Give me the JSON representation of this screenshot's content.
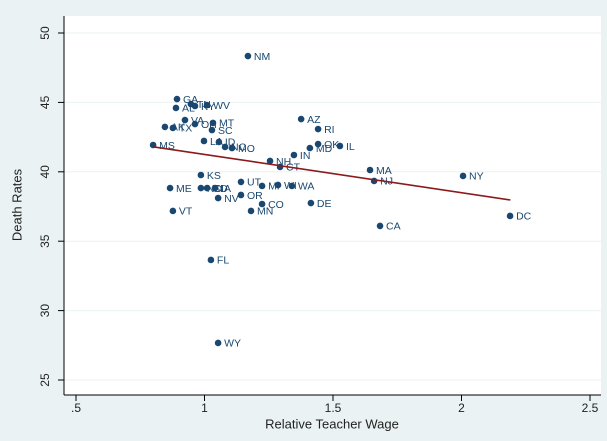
{
  "chart_data": {
    "type": "scatter",
    "x_label": "Relative Teacher Wage",
    "y_label": "Death Rates",
    "xlim": [
      0.5,
      2.5
    ],
    "ylim": [
      25,
      50
    ],
    "xticks": [
      {
        "value": 0.5,
        "label": ".5"
      },
      1,
      1.5,
      2,
      2.5
    ],
    "yticks": [
      25,
      30,
      35,
      40,
      45,
      50
    ],
    "grid": true,
    "color": "#1a476f",
    "fit_color": "#8b1a1a",
    "points": [
      {
        "label": "NM",
        "x": 1.169,
        "y": 48.34
      },
      {
        "label": "GA",
        "x": 0.893,
        "y": 45.24
      },
      {
        "label": "TN",
        "x": 0.947,
        "y": 44.88
      },
      {
        "label": "KY",
        "x": 0.963,
        "y": 44.74
      },
      {
        "label": "WV",
        "x": 1.01,
        "y": 44.81
      },
      {
        "label": "AL",
        "x": 0.889,
        "y": 44.6
      },
      {
        "label": "VA",
        "x": 0.924,
        "y": 43.73
      },
      {
        "label": "AK",
        "x": 0.846,
        "y": 43.23
      },
      {
        "label": "TX",
        "x": 0.877,
        "y": 43.16
      },
      {
        "label": "OH",
        "x": 0.963,
        "y": 43.44
      },
      {
        "label": "MT",
        "x": 1.033,
        "y": 43.52
      },
      {
        "label": "SC",
        "x": 1.029,
        "y": 43.01
      },
      {
        "label": "AZ",
        "x": 1.376,
        "y": 43.8
      },
      {
        "label": "RI",
        "x": 1.442,
        "y": 43.08
      },
      {
        "label": "LA",
        "x": 0.998,
        "y": 42.22
      },
      {
        "label": "ID",
        "x": 1.056,
        "y": 42.15
      },
      {
        "label": "NC",
        "x": 1.08,
        "y": 41.79
      },
      {
        "label": "MO",
        "x": 1.107,
        "y": 41.71
      },
      {
        "label": "MS",
        "x": 0.8,
        "y": 41.93
      },
      {
        "label": "OK",
        "x": 1.442,
        "y": 42.0
      },
      {
        "label": "IL",
        "x": 1.527,
        "y": 41.86
      },
      {
        "label": "MD",
        "x": 1.41,
        "y": 41.71
      },
      {
        "label": "IN",
        "x": 1.348,
        "y": 41.21
      },
      {
        "label": "NH",
        "x": 1.255,
        "y": 40.78
      },
      {
        "label": "CT",
        "x": 1.294,
        "y": 40.35
      },
      {
        "label": "MA",
        "x": 1.644,
        "y": 40.13
      },
      {
        "label": "NJ",
        "x": 1.66,
        "y": 39.34
      },
      {
        "label": "NY",
        "x": 2.006,
        "y": 39.7
      },
      {
        "label": "DC",
        "x": 2.189,
        "y": 36.82
      },
      {
        "label": "KS",
        "x": 0.986,
        "y": 39.77
      },
      {
        "label": "ND",
        "x": 0.986,
        "y": 38.83
      },
      {
        "label": "SD",
        "x": 1.01,
        "y": 38.83
      },
      {
        "label": "IA",
        "x": 1.041,
        "y": 38.83
      },
      {
        "label": "ME",
        "x": 0.866,
        "y": 38.83
      },
      {
        "label": "UT",
        "x": 1.142,
        "y": 39.27
      },
      {
        "label": "MI",
        "x": 1.224,
        "y": 38.98
      },
      {
        "label": "WI",
        "x": 1.286,
        "y": 39.05
      },
      {
        "label": "WA",
        "x": 1.34,
        "y": 38.98
      },
      {
        "label": "OR",
        "x": 1.142,
        "y": 38.33
      },
      {
        "label": "NV",
        "x": 1.053,
        "y": 38.11
      },
      {
        "label": "CO",
        "x": 1.224,
        "y": 37.68
      },
      {
        "label": "MN",
        "x": 1.181,
        "y": 37.18
      },
      {
        "label": "DE",
        "x": 1.414,
        "y": 37.75
      },
      {
        "label": "VT",
        "x": 0.877,
        "y": 37.18
      },
      {
        "label": "CA",
        "x": 1.683,
        "y": 36.1
      },
      {
        "label": "FL",
        "x": 1.025,
        "y": 33.65
      },
      {
        "label": "WY",
        "x": 1.053,
        "y": 27.67
      }
    ],
    "fit_line": {
      "x": [
        0.8,
        2.19
      ],
      "y": [
        41.8,
        37.97
      ]
    }
  }
}
